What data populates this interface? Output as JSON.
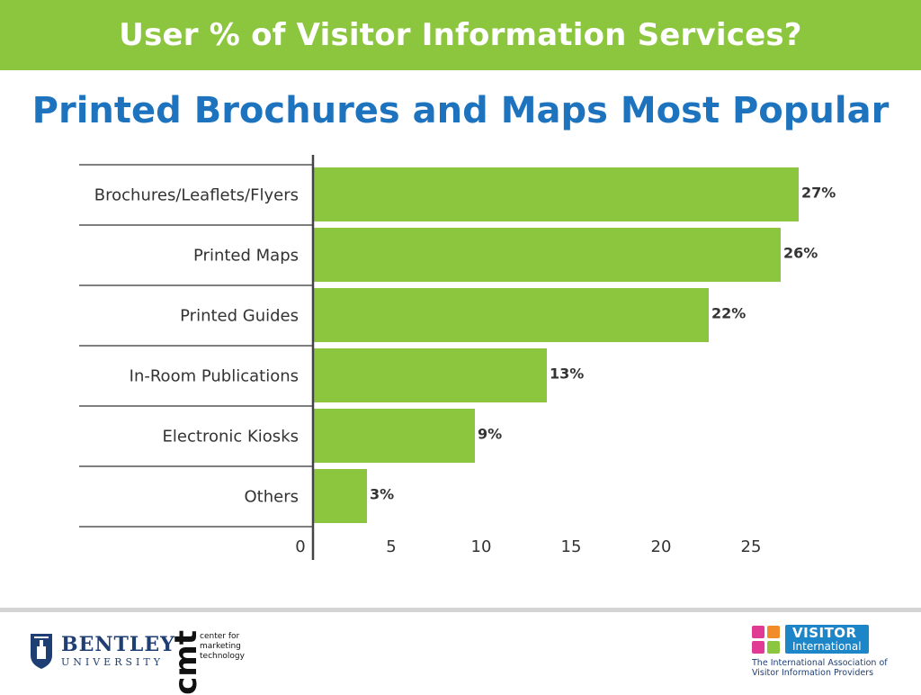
{
  "banner": {
    "title": "User % of Visitor Information Services?"
  },
  "subtitle": "Printed Brochures and Maps Most Popular",
  "colors": {
    "banner": "#8cc63f",
    "bar": "#8cc63f",
    "subtitle": "#1e73be"
  },
  "chart_data": {
    "type": "bar",
    "orientation": "horizontal",
    "categories": [
      "Brochures/Leaflets/Flyers",
      "Printed Maps",
      "Printed Guides",
      "In-Room Publications",
      "Electronic Kiosks",
      "Others"
    ],
    "values": [
      27,
      26,
      22,
      13,
      9,
      3
    ],
    "value_labels": [
      "27%",
      "26%",
      "22%",
      "13%",
      "9%",
      "3%"
    ],
    "x_ticks": [
      0,
      5,
      10,
      15,
      20,
      25
    ],
    "xlim": [
      0,
      27.5
    ],
    "grid": false
  },
  "footer": {
    "bentley": {
      "name": "BENTLEY",
      "sub": "UNIVERSITY",
      "icon": "bentley-crest-icon"
    },
    "cmt": {
      "mark": "cmt",
      "lines": [
        "center for",
        "marketing",
        "technology"
      ]
    },
    "visitor": {
      "line1": "VISITOR",
      "line2": "International",
      "caption1": "The International Association of",
      "caption2": "Visitor Information Providers"
    }
  }
}
